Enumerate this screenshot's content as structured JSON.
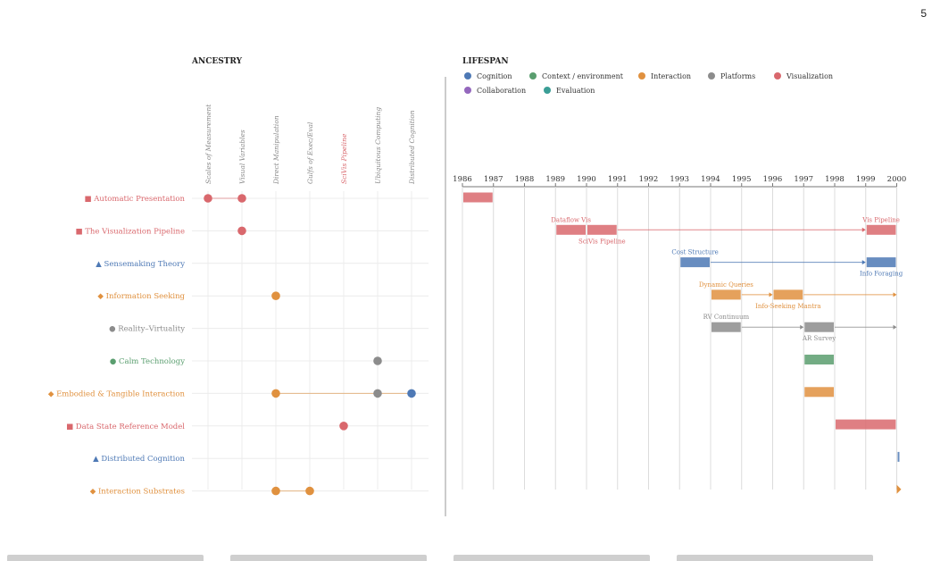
{
  "page_number": "5",
  "chart_data": [
    {
      "type": "matrix",
      "title": "ANCESTRY",
      "columns": [
        "Scales of Measurement",
        "Visual Variables",
        "Direct Manipulation",
        "Gulfs of Exec/Eval",
        "SciVis Pipeline",
        "Ubiquitous Computing",
        "Distributed Cognition"
      ],
      "highlight_column": "SciVis Pipeline",
      "rows": [
        {
          "label": "Automatic Presentation",
          "marker": "■",
          "category": "Visualization",
          "dots": [
            {
              "col": 0,
              "category": "Visualization"
            },
            {
              "col": 1,
              "category": "Visualization"
            }
          ]
        },
        {
          "label": "The Visualization Pipeline",
          "marker": "■",
          "category": "Visualization",
          "dots": [
            {
              "col": 1,
              "category": "Visualization"
            }
          ]
        },
        {
          "label": "Sensemaking Theory",
          "marker": "▲",
          "category": "Cognition",
          "dots": []
        },
        {
          "label": "Information Seeking",
          "marker": "◆",
          "category": "Interaction",
          "dots": [
            {
              "col": 2,
              "category": "Interaction"
            }
          ]
        },
        {
          "label": "Reality–Virtuality",
          "marker": "●",
          "category": "Platforms",
          "dots": []
        },
        {
          "label": "Calm Technology",
          "marker": "●",
          "category": "Context / environment",
          "dots": [
            {
              "col": 5,
              "category": "Platforms"
            }
          ]
        },
        {
          "label": "Embodied & Tangible Interaction",
          "marker": "◆",
          "category": "Interaction",
          "dots": [
            {
              "col": 2,
              "category": "Interaction"
            },
            {
              "col": 5,
              "category": "Platforms"
            },
            {
              "col": 6,
              "category": "Cognition"
            }
          ]
        },
        {
          "label": "Data State Reference Model",
          "marker": "■",
          "category": "Visualization",
          "dots": [
            {
              "col": 4,
              "category": "Visualization"
            }
          ]
        },
        {
          "label": "Distributed Cognition",
          "marker": "▲",
          "category": "Cognition",
          "dots": []
        },
        {
          "label": "Interaction Substrates",
          "marker": "◆",
          "category": "Interaction",
          "dots": [
            {
              "col": 2,
              "category": "Interaction"
            },
            {
              "col": 3,
              "category": "Interaction"
            }
          ]
        }
      ]
    },
    {
      "type": "timeline",
      "title": "LIFESPAN",
      "legend": [
        {
          "name": "Cognition",
          "color": "#4e79b5"
        },
        {
          "name": "Context / environment",
          "color": "#5a9e6f"
        },
        {
          "name": "Interaction",
          "color": "#e0913f"
        },
        {
          "name": "Platforms",
          "color": "#8c8c8c"
        },
        {
          "name": "Visualization",
          "color": "#d9686d"
        },
        {
          "name": "Collaboration",
          "color": "#9467bd"
        },
        {
          "name": "Evaluation",
          "color": "#3a9e96"
        }
      ],
      "years": [
        1986,
        1987,
        1988,
        1989,
        1990,
        1991,
        1992,
        1993,
        1994,
        1995,
        1996,
        1997,
        1998,
        1999,
        2000
      ],
      "rows": [
        {
          "category": "Visualization",
          "bars": [
            {
              "start": 1986,
              "end": 1987
            }
          ],
          "labels": []
        },
        {
          "category": "Visualization",
          "bars": [
            {
              "start": 1989,
              "end": 1990
            },
            {
              "start": 1990,
              "end": 1991
            },
            {
              "start": 1999,
              "end": 2000
            }
          ],
          "arrow": [
            1991,
            1999
          ],
          "labels": [
            {
              "text": "Dataflow Vis",
              "at": 1989.5,
              "pos": "above"
            },
            {
              "text": "SciVis Pipeline",
              "at": 1990.5,
              "pos": "below"
            },
            {
              "text": "Vis Pipeline",
              "at": 1999.5,
              "pos": "above"
            }
          ]
        },
        {
          "category": "Cognition",
          "bars": [
            {
              "start": 1993,
              "end": 1994
            },
            {
              "start": 1999,
              "end": 2000
            }
          ],
          "arrow": [
            1994,
            1999
          ],
          "labels": [
            {
              "text": "Cost Structure",
              "at": 1993.5,
              "pos": "above"
            },
            {
              "text": "Info Foraging",
              "at": 1999.5,
              "pos": "below"
            }
          ]
        },
        {
          "category": "Interaction",
          "bars": [
            {
              "start": 1994,
              "end": 1995
            },
            {
              "start": 1996,
              "end": 1997
            }
          ],
          "arrow": [
            1995,
            1996
          ],
          "arrow2": [
            1997,
            2000
          ],
          "labels": [
            {
              "text": "Dynamic Queries",
              "at": 1994.5,
              "pos": "above"
            },
            {
              "text": "Info-Seeking Mantra",
              "at": 1996.5,
              "pos": "below"
            }
          ]
        },
        {
          "category": "Platforms",
          "bars": [
            {
              "start": 1994,
              "end": 1995
            },
            {
              "start": 1997,
              "end": 1998
            }
          ],
          "arrow": [
            1995,
            1997
          ],
          "arrow2": [
            1998,
            2000
          ],
          "labels": [
            {
              "text": "RV Continuum",
              "at": 1994.5,
              "pos": "above"
            },
            {
              "text": "AR Survey",
              "at": 1997.5,
              "pos": "below"
            }
          ]
        },
        {
          "category": "Context / environment",
          "bars": [
            {
              "start": 1997,
              "end": 1998
            }
          ],
          "labels": []
        },
        {
          "category": "Interaction",
          "bars": [
            {
              "start": 1997,
              "end": 1998
            }
          ],
          "labels": []
        },
        {
          "category": "Visualization",
          "bars": [
            {
              "start": 1998,
              "end": 2000
            }
          ],
          "labels": []
        },
        {
          "category": "Cognition",
          "bars": [
            {
              "start": 2000,
              "end": 2000.1
            }
          ],
          "labels": []
        },
        {
          "category": "Interaction",
          "bars": [],
          "point": 2000,
          "labels": []
        }
      ]
    }
  ]
}
